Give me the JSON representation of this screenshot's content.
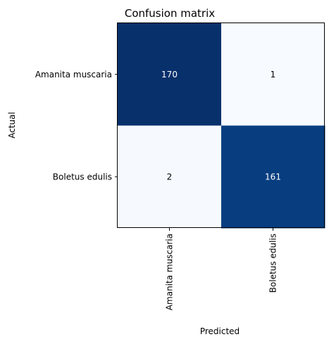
{
  "chart_data": {
    "type": "heatmap",
    "title": "Confusion matrix",
    "xlabel": "Predicted",
    "ylabel": "Actual",
    "x_categories": [
      "Amanita muscaria",
      "Boletus edulis"
    ],
    "y_categories": [
      "Amanita muscaria",
      "Boletus edulis"
    ],
    "values": [
      [
        170,
        1
      ],
      [
        2,
        161
      ]
    ],
    "colormap": "Blues",
    "colors": {
      "low": "#f7fbff",
      "high": "#08306b",
      "text_on_dark": "#ffffff",
      "text_on_light": "#000000"
    },
    "grid": false,
    "legend": "none"
  }
}
